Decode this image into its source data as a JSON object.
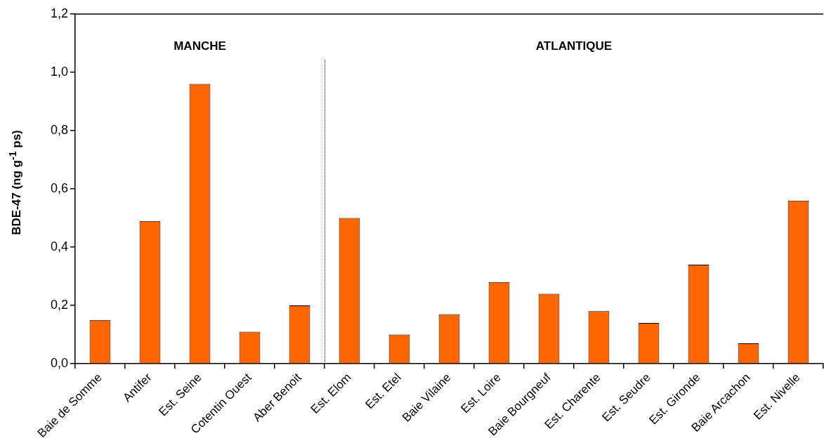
{
  "chart_data": {
    "type": "bar",
    "ylabel": "BDE-47 (ng g$^{-1}$ ps)",
    "categories": [
      "Baie de Somme",
      "Antifer",
      "Est. Seine",
      "Cotentin Ouest",
      "Aber Benoit",
      "Est. Elom",
      "Est. Etel",
      "Baie Vilaine",
      "Est. Loire",
      "Baie Bourgneuf",
      "Est. Charente",
      "Est. Seudre",
      "Est. Gironde",
      "Baie Arcachon",
      "Est. Nivelle"
    ],
    "values": [
      0.15,
      0.49,
      0.96,
      0.11,
      0.2,
      0.5,
      0.1,
      0.17,
      0.28,
      0.24,
      0.18,
      0.14,
      0.34,
      0.07,
      0.56
    ],
    "color": "#ff6600",
    "ylim": [
      0,
      1.2
    ],
    "yticks": [
      {
        "value": 0,
        "label": "0,0"
      },
      {
        "value": 0.2,
        "label": "0,2"
      },
      {
        "value": 0.4,
        "label": "0,4"
      },
      {
        "value": 0.6,
        "label": "0,6"
      },
      {
        "value": 0.8,
        "label": "0,8"
      },
      {
        "value": 1.0,
        "label": "1,0"
      },
      {
        "value": 1.2,
        "label": "1,2"
      }
    ],
    "annotations": [
      "MANCHE",
      "ATLANTIQUE"
    ],
    "grid": false,
    "legend": false
  }
}
